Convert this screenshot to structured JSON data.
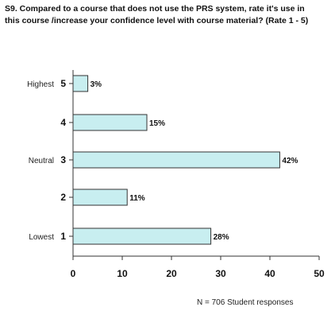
{
  "title_lines": [
    "S9. Compared to a course that does not use the PRS system, rate it's use in",
    "this course /increase your confidence level with course material? (Rate 1 - 5)"
  ],
  "footnote": "N = 706 Student responses",
  "colors": {
    "bar_fill": "#c8eef0",
    "bar_stroke": "#333333",
    "axis": "#333333",
    "background": "#ffffff"
  },
  "chart_data": {
    "type": "bar",
    "orientation": "horizontal",
    "categories": [
      {
        "rating": "5",
        "label": "Highest"
      },
      {
        "rating": "4",
        "label": ""
      },
      {
        "rating": "3",
        "label": "Neutral"
      },
      {
        "rating": "2",
        "label": ""
      },
      {
        "rating": "1",
        "label": "Lowest"
      }
    ],
    "values": [
      3,
      15,
      42,
      11,
      28
    ],
    "value_labels": [
      "3%",
      "15%",
      "42%",
      "11%",
      "28%"
    ],
    "xlim": [
      0,
      50
    ],
    "xticks": [
      0,
      10,
      20,
      30,
      40,
      50
    ],
    "grid": false,
    "legend": "none"
  }
}
